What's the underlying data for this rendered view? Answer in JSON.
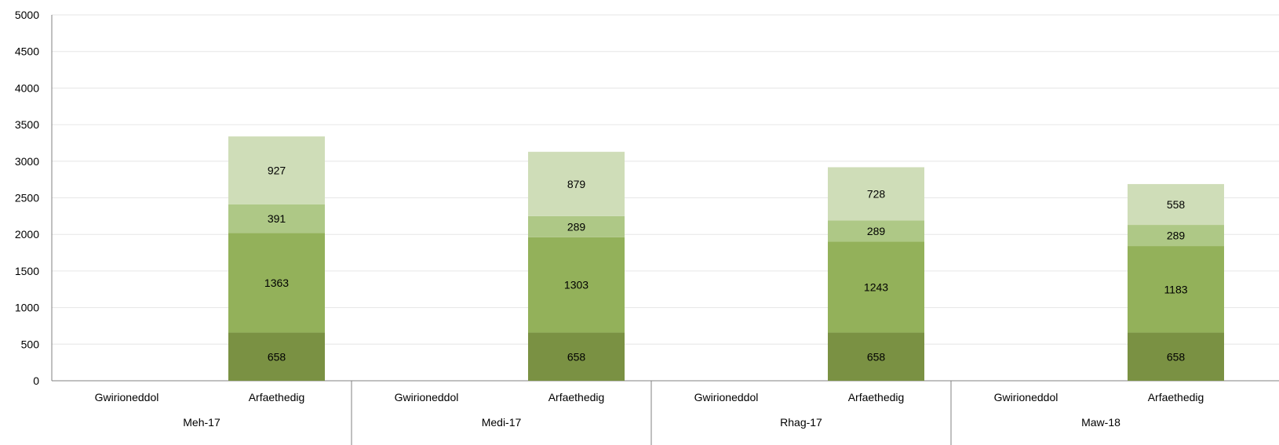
{
  "chart_data": {
    "type": "bar",
    "stacked": true,
    "ylim": [
      0,
      5000
    ],
    "yticks": [
      0,
      500,
      1000,
      1500,
      2000,
      2500,
      3000,
      3500,
      4000,
      4500,
      5000
    ],
    "grid": true,
    "groups": [
      "Meh-17",
      "Medi-17",
      "Rhag-17",
      "Maw-18"
    ],
    "subcategories": [
      "Gwirioneddol",
      "Arfaethedig"
    ],
    "series": [
      {
        "color": "#7a9143",
        "values": [
          [
            null,
            658
          ],
          [
            null,
            658
          ],
          [
            null,
            658
          ],
          [
            null,
            658
          ]
        ]
      },
      {
        "color": "#93b15a",
        "values": [
          [
            null,
            1363
          ],
          [
            null,
            1303
          ],
          [
            null,
            1243
          ],
          [
            null,
            1183
          ]
        ]
      },
      {
        "color": "#aec886",
        "values": [
          [
            null,
            391
          ],
          [
            null,
            289
          ],
          [
            null,
            289
          ],
          [
            null,
            289
          ]
        ]
      },
      {
        "color": "#cfddb8",
        "values": [
          [
            null,
            927
          ],
          [
            null,
            879
          ],
          [
            null,
            728
          ],
          [
            null,
            558
          ]
        ]
      }
    ]
  }
}
